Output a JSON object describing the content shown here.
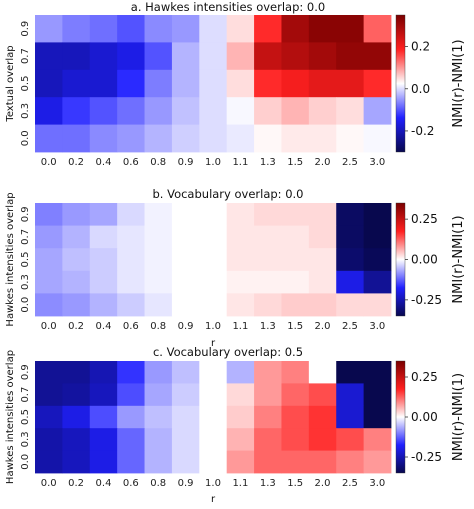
{
  "chart_data": [
    {
      "type": "heatmap",
      "title": "a. Hawkes intensities overlap: 0.0",
      "xlabel": "",
      "ylabel": "Textual overlap",
      "x": [
        "0.0",
        "0.2",
        "0.4",
        "0.6",
        "0.8",
        "0.9",
        "1.0",
        "1.1",
        "1.3",
        "1.5",
        "2.0",
        "2.5",
        "3.0"
      ],
      "y": [
        "0.9",
        "0.7",
        "0.5",
        "0.3",
        "0.0"
      ],
      "colorbar_label": "NMI(r)-NMI(1)",
      "colorbar_ticks": [
        "-0.2",
        "0.0",
        "0.2"
      ],
      "vmin": -0.3,
      "vmax": 0.35,
      "values": [
        [
          -0.05,
          -0.07,
          -0.08,
          -0.1,
          -0.06,
          -0.05,
          0.0,
          0.05,
          0.18,
          0.3,
          0.33,
          0.33,
          0.14
        ],
        [
          -0.2,
          -0.2,
          -0.18,
          -0.16,
          -0.1,
          -0.03,
          0.0,
          0.08,
          0.26,
          0.28,
          0.3,
          0.32,
          0.32
        ],
        [
          -0.2,
          -0.18,
          -0.18,
          -0.13,
          -0.07,
          -0.03,
          0.0,
          0.05,
          0.18,
          0.2,
          0.22,
          0.22,
          0.18
        ],
        [
          -0.16,
          -0.12,
          -0.1,
          -0.08,
          -0.05,
          -0.02,
          0.0,
          0.02,
          0.06,
          0.08,
          0.06,
          0.05,
          -0.04
        ],
        [
          -0.08,
          -0.08,
          -0.06,
          -0.05,
          -0.03,
          -0.01,
          0.0,
          0.01,
          0.03,
          0.04,
          0.04,
          0.03,
          0.02
        ]
      ]
    },
    {
      "type": "heatmap",
      "title": "b. Vocabulary overlap: 0.0",
      "xlabel": "r",
      "ylabel": "Hawkes intensities overlap",
      "x": [
        "0.0",
        "0.2",
        "0.4",
        "0.6",
        "0.8",
        "0.9",
        "1.0",
        "1.1",
        "1.3",
        "1.5",
        "2.0",
        "2.5",
        "3.0"
      ],
      "y": [
        "0.9",
        "0.7",
        "0.5",
        "0.3",
        "0.0"
      ],
      "colorbar_label": "NMI(r)-NMI(1)",
      "colorbar_ticks": [
        "0.25",
        "0.00",
        "-0.25"
      ],
      "vmin": -0.35,
      "vmax": 0.35,
      "values": [
        [
          -0.1,
          -0.08,
          -0.07,
          -0.03,
          -0.01,
          0.0,
          0.0,
          0.02,
          0.03,
          0.03,
          0.03,
          -0.33,
          -0.35
        ],
        [
          -0.08,
          -0.06,
          -0.03,
          -0.02,
          -0.01,
          0.0,
          0.0,
          0.02,
          0.02,
          0.02,
          0.03,
          -0.33,
          -0.35
        ],
        [
          -0.07,
          -0.05,
          -0.04,
          -0.02,
          -0.01,
          0.0,
          0.0,
          0.02,
          0.02,
          0.02,
          0.02,
          -0.32,
          -0.34
        ],
        [
          -0.07,
          -0.06,
          -0.04,
          -0.02,
          -0.01,
          0.0,
          0.0,
          0.01,
          0.01,
          0.01,
          0.02,
          -0.2,
          -0.28
        ],
        [
          -0.09,
          -0.08,
          -0.06,
          -0.04,
          -0.02,
          0.0,
          0.0,
          0.02,
          0.03,
          0.04,
          0.04,
          0.03,
          0.03
        ]
      ]
    },
    {
      "type": "heatmap",
      "title": "c. Vocabulary overlap: 0.5",
      "xlabel": "r",
      "ylabel": "Hawkes intensities overlap",
      "x": [
        "0.0",
        "0.2",
        "0.4",
        "0.6",
        "0.8",
        "0.9",
        "1.0",
        "1.1",
        "1.3",
        "1.5",
        "2.0",
        "2.5",
        "3.0"
      ],
      "y": [
        "0.9",
        "0.7",
        "0.5",
        "0.3",
        "0.0"
      ],
      "colorbar_label": "NMI(r)-NMI(1)",
      "colorbar_ticks": [
        "0.25",
        "0.00",
        "-0.25"
      ],
      "vmin": -0.35,
      "vmax": 0.35,
      "values": [
        [
          -0.28,
          -0.28,
          -0.25,
          -0.16,
          -0.08,
          -0.05,
          0.0,
          -0.06,
          0.08,
          0.1,
          0.0,
          -0.35,
          -0.35
        ],
        [
          -0.28,
          -0.27,
          -0.24,
          -0.14,
          -0.07,
          -0.04,
          0.0,
          0.03,
          0.08,
          0.12,
          0.14,
          -0.22,
          -0.35
        ],
        [
          -0.24,
          -0.2,
          -0.14,
          -0.08,
          -0.05,
          -0.03,
          0.0,
          0.04,
          0.1,
          0.14,
          0.16,
          -0.22,
          -0.35
        ],
        [
          -0.26,
          -0.24,
          -0.2,
          -0.12,
          -0.06,
          -0.03,
          0.0,
          0.06,
          0.12,
          0.14,
          0.16,
          0.14,
          0.1
        ],
        [
          -0.26,
          -0.24,
          -0.2,
          -0.12,
          -0.06,
          -0.03,
          0.0,
          0.08,
          0.12,
          0.12,
          0.12,
          0.1,
          0.08
        ]
      ]
    }
  ]
}
